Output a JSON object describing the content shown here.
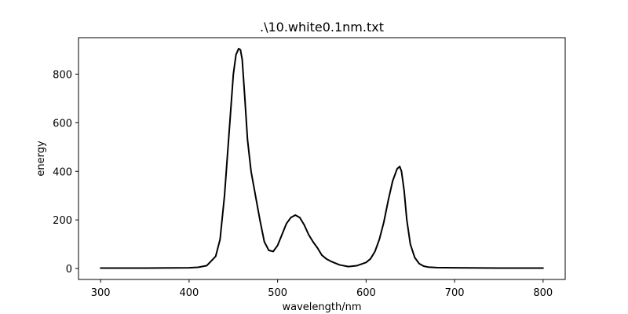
{
  "chart_data": {
    "type": "line",
    "title": ".\\10.white0.1nm.txt",
    "xlabel": "wavelength/nm",
    "ylabel": "energy",
    "xlim": [
      275,
      825
    ],
    "ylim": [
      -45,
      950
    ],
    "xticks": [
      300,
      400,
      500,
      600,
      700,
      800
    ],
    "yticks": [
      0,
      200,
      400,
      600,
      800
    ],
    "grid": false,
    "colors": {
      "line": "#000000",
      "axes": "#000000",
      "background": "#ffffff"
    },
    "series": [
      {
        "x": [
          300,
          350,
          400,
          410,
          420,
          430,
          435,
          440,
          445,
          450,
          453,
          456,
          458,
          460,
          463,
          466,
          470,
          475,
          480,
          485,
          490,
          495,
          500,
          505,
          510,
          515,
          520,
          525,
          530,
          535,
          540,
          545,
          550,
          555,
          560,
          570,
          580,
          590,
          600,
          605,
          610,
          615,
          620,
          625,
          630,
          635,
          638,
          640,
          643,
          646,
          650,
          655,
          660,
          665,
          670,
          680,
          700,
          750,
          800
        ],
        "values": [
          2,
          2,
          3,
          5,
          12,
          50,
          120,
          300,
          550,
          800,
          880,
          905,
          900,
          860,
          700,
          530,
          400,
          300,
          200,
          110,
          75,
          70,
          95,
          140,
          185,
          210,
          220,
          210,
          180,
          140,
          110,
          85,
          55,
          40,
          30,
          15,
          8,
          12,
          25,
          40,
          70,
          120,
          190,
          280,
          360,
          410,
          420,
          400,
          320,
          200,
          100,
          45,
          20,
          10,
          6,
          4,
          3,
          2,
          2
        ]
      }
    ]
  }
}
